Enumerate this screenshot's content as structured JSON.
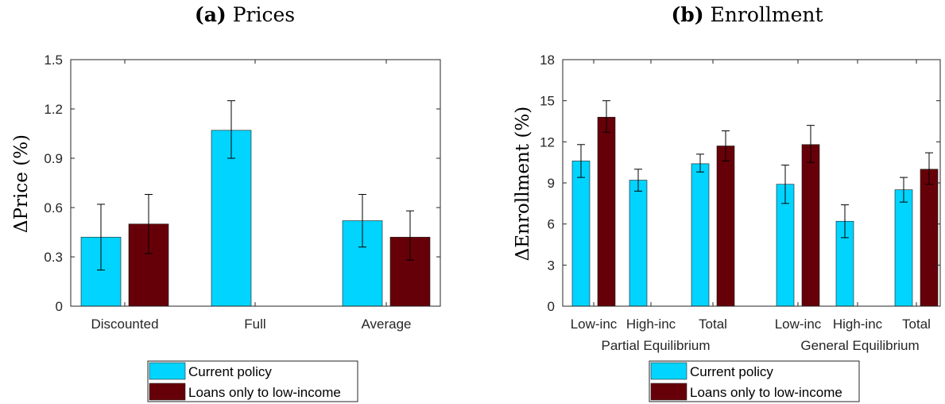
{
  "colors": {
    "current": "#00d4ff",
    "loans": "#660008",
    "axis": "#262626",
    "errorbar": "#000000"
  },
  "chart_data": [
    {
      "panel_letter": "(a)",
      "panel_title": "Prices",
      "type": "bar",
      "ylabel_delta": "Δ",
      "ylabel_main": "Price",
      "ylabel_unit": "(%)",
      "ylim": [
        0,
        1.5
      ],
      "yticks": [
        "0",
        "0.3",
        "0.6",
        "0.9",
        "1.2",
        "1.5"
      ],
      "ytick_values": [
        0,
        0.3,
        0.6,
        0.9,
        1.2,
        1.5
      ],
      "categories": [
        "Discounted",
        "Full",
        "Average"
      ],
      "group_labels": [],
      "series": [
        {
          "name": "Current policy",
          "values": [
            0.42,
            1.07,
            0.52
          ],
          "err_low": [
            0.22,
            0.9,
            0.36
          ],
          "err_high": [
            0.62,
            1.25,
            0.68
          ]
        },
        {
          "name": "Loans only to low-income",
          "values": [
            0.5,
            null,
            0.42
          ],
          "err_low": [
            0.32,
            null,
            0.28
          ],
          "err_high": [
            0.68,
            null,
            0.58
          ]
        }
      ],
      "legend": [
        "Current policy",
        "Loans only to low-income"
      ],
      "grid": false
    },
    {
      "panel_letter": "(b)",
      "panel_title": "Enrollment",
      "type": "bar",
      "ylabel_delta": "Δ",
      "ylabel_main": "Enrollment",
      "ylabel_unit": "(%)",
      "ylim": [
        0,
        18
      ],
      "yticks": [
        "0",
        "3",
        "6",
        "9",
        "12",
        "15",
        "18"
      ],
      "ytick_values": [
        0,
        3,
        6,
        9,
        12,
        15,
        18
      ],
      "categories": [
        "Low-inc",
        "High-inc",
        "Total",
        "Low-inc",
        "High-inc",
        "Total"
      ],
      "group_labels": [
        "Partial Equilibrium",
        "General Equilibrium"
      ],
      "series": [
        {
          "name": "Current policy",
          "values": [
            10.6,
            9.2,
            10.4,
            8.9,
            6.2,
            8.5
          ],
          "err_low": [
            9.4,
            8.4,
            9.8,
            7.5,
            5.0,
            7.6
          ],
          "err_high": [
            11.8,
            10.0,
            11.1,
            10.3,
            7.4,
            9.4
          ]
        },
        {
          "name": "Loans only to low-income",
          "values": [
            13.8,
            null,
            11.7,
            11.8,
            null,
            10.0
          ],
          "err_low": [
            12.7,
            null,
            10.6,
            10.5,
            null,
            8.9
          ],
          "err_high": [
            15.0,
            null,
            12.8,
            13.2,
            null,
            11.2
          ]
        }
      ],
      "legend": [
        "Current policy",
        "Loans only to low-income"
      ],
      "grid": false
    }
  ]
}
